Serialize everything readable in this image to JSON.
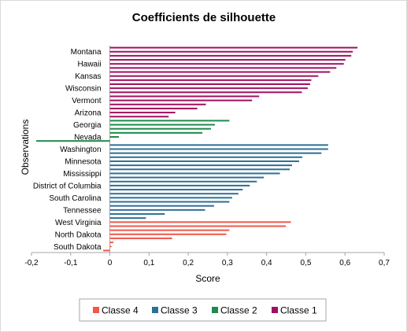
{
  "chart_data": {
    "type": "bar",
    "orientation": "horizontal",
    "title": "Coefficients de silhouette",
    "xlabel": "Score",
    "ylabel": "Observations",
    "xlim": [
      -0.2,
      0.7
    ],
    "xticks": [
      -0.2,
      -0.1,
      0,
      0.1,
      0.2,
      0.3,
      0.4,
      0.5,
      0.6,
      0.7
    ],
    "xtick_labels": [
      "-0,2",
      "-0,1",
      "0",
      "0,1",
      "0,2",
      "0,3",
      "0,4",
      "0,5",
      "0,6",
      "0,7"
    ],
    "grid": false,
    "legend_position": "bottom",
    "colors": {
      "Classe 1": "#a0105f",
      "Classe 2": "#1f8a4d",
      "Classe 3": "#2e6f96",
      "Classe 4": "#f0584a"
    },
    "legend": [
      {
        "name": "Classe 4"
      },
      {
        "name": "Classe 3"
      },
      {
        "name": "Classe 2"
      },
      {
        "name": "Classe 1"
      }
    ],
    "bars": [
      {
        "label": "",
        "value": 0.632,
        "class": "Classe 1"
      },
      {
        "label": "Montana",
        "value": 0.62,
        "class": "Classe 1"
      },
      {
        "label": "",
        "value": 0.616,
        "class": "Classe 1"
      },
      {
        "label": "",
        "value": 0.601,
        "class": "Classe 1"
      },
      {
        "label": "Hawaii",
        "value": 0.597,
        "class": "Classe 1"
      },
      {
        "label": "",
        "value": 0.578,
        "class": "Classe 1"
      },
      {
        "label": "",
        "value": 0.562,
        "class": "Classe 1"
      },
      {
        "label": "Kansas",
        "value": 0.532,
        "class": "Classe 1"
      },
      {
        "label": "",
        "value": 0.514,
        "class": "Classe 1"
      },
      {
        "label": "",
        "value": 0.511,
        "class": "Classe 1"
      },
      {
        "label": "Wisconsin",
        "value": 0.505,
        "class": "Classe 1"
      },
      {
        "label": "",
        "value": 0.49,
        "class": "Classe 1"
      },
      {
        "label": "",
        "value": 0.381,
        "class": "Classe 1"
      },
      {
        "label": "Vermont",
        "value": 0.363,
        "class": "Classe 1"
      },
      {
        "label": "",
        "value": 0.245,
        "class": "Classe 1"
      },
      {
        "label": "",
        "value": 0.223,
        "class": "Classe 1"
      },
      {
        "label": "Arizona",
        "value": 0.167,
        "class": "Classe 1"
      },
      {
        "label": "",
        "value": 0.15,
        "class": "Classe 1"
      },
      {
        "label": "",
        "value": 0.305,
        "class": "Classe 2"
      },
      {
        "label": "Georgia",
        "value": 0.268,
        "class": "Classe 2"
      },
      {
        "label": "",
        "value": 0.258,
        "class": "Classe 2"
      },
      {
        "label": "",
        "value": 0.236,
        "class": "Classe 2"
      },
      {
        "label": "Nevada",
        "value": 0.023,
        "class": "Classe 2"
      },
      {
        "label": "",
        "value": -0.188,
        "class": "Classe 2"
      },
      {
        "label": "",
        "value": 0.557,
        "class": "Classe 3"
      },
      {
        "label": "Washington",
        "value": 0.557,
        "class": "Classe 3"
      },
      {
        "label": "",
        "value": 0.54,
        "class": "Classe 3"
      },
      {
        "label": "",
        "value": 0.491,
        "class": "Classe 3"
      },
      {
        "label": "Minnesota",
        "value": 0.483,
        "class": "Classe 3"
      },
      {
        "label": "",
        "value": 0.465,
        "class": "Classe 3"
      },
      {
        "label": "",
        "value": 0.459,
        "class": "Classe 3"
      },
      {
        "label": "Mississippi",
        "value": 0.434,
        "class": "Classe 3"
      },
      {
        "label": "",
        "value": 0.393,
        "class": "Classe 3"
      },
      {
        "label": "",
        "value": 0.375,
        "class": "Classe 3"
      },
      {
        "label": "District of Columbia",
        "value": 0.357,
        "class": "Classe 3"
      },
      {
        "label": "",
        "value": 0.339,
        "class": "Classe 3"
      },
      {
        "label": "",
        "value": 0.328,
        "class": "Classe 3"
      },
      {
        "label": "South Carolina",
        "value": 0.312,
        "class": "Classe 3"
      },
      {
        "label": "",
        "value": 0.305,
        "class": "Classe 3"
      },
      {
        "label": "",
        "value": 0.266,
        "class": "Classe 3"
      },
      {
        "label": "Tennessee",
        "value": 0.243,
        "class": "Classe 3"
      },
      {
        "label": "",
        "value": 0.14,
        "class": "Classe 3"
      },
      {
        "label": "",
        "value": 0.092,
        "class": "Classe 3"
      },
      {
        "label": "West Virginia",
        "value": 0.462,
        "class": "Classe 4"
      },
      {
        "label": "",
        "value": 0.449,
        "class": "Classe 4"
      },
      {
        "label": "",
        "value": 0.305,
        "class": "Classe 4"
      },
      {
        "label": "North Dakota",
        "value": 0.297,
        "class": "Classe 4"
      },
      {
        "label": "",
        "value": 0.159,
        "class": "Classe 4"
      },
      {
        "label": "",
        "value": 0.009,
        "class": "Classe 4"
      },
      {
        "label": "South Dakota",
        "value": 0.004,
        "class": "Classe 4"
      },
      {
        "label": "",
        "value": -0.017,
        "class": "Classe 4"
      }
    ]
  }
}
